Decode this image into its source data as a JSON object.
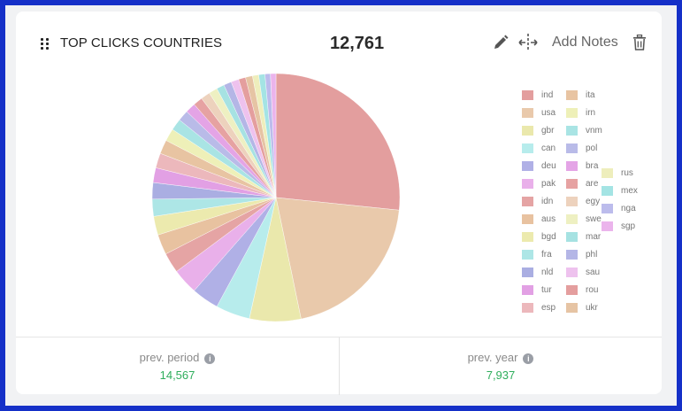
{
  "widget": {
    "title": "TOP CLICKS COUNTRIES",
    "total": "12,761",
    "actions": {
      "edit_icon": "pencil-icon",
      "move_icon": "move-horizontal-icon",
      "add_notes_label": "Add Notes",
      "delete_icon": "trash-icon"
    }
  },
  "footer": {
    "prev_period": {
      "label": "prev. period",
      "value": "14,567",
      "info_icon": "i"
    },
    "prev_year": {
      "label": "prev. year",
      "value": "7,937",
      "info_icon": "i"
    }
  },
  "colors": {
    "positive": "#2fae5c",
    "border": "#1530c8"
  },
  "chart_data": {
    "type": "pie",
    "title": "TOP CLICKS COUNTRIES",
    "total": 12761,
    "legend_position": "right",
    "categories": [
      "ind",
      "usa",
      "gbr",
      "can",
      "deu",
      "pak",
      "idn",
      "aus",
      "bgd",
      "fra",
      "nld",
      "tur",
      "esp",
      "ita",
      "irn",
      "vnm",
      "pol",
      "bra",
      "are",
      "egy",
      "swe",
      "mar",
      "phl",
      "sau",
      "rou",
      "ukr",
      "rus",
      "mex",
      "nga",
      "sgp"
    ],
    "values": [
      26.2,
      19.8,
      6.6,
      4.4,
      3.5,
      3.3,
      2.6,
      2.6,
      2.4,
      2.2,
      2.1,
      1.9,
      1.9,
      1.8,
      1.6,
      1.5,
      1.4,
      1.3,
      1.2,
      1.2,
      1.1,
      1.0,
      1.0,
      1.0,
      0.9,
      0.9,
      0.8,
      0.8,
      0.7,
      0.7
    ],
    "unit": "percent (estimated)",
    "colors": [
      "#e39e9e",
      "#e9c9ab",
      "#eae8ac",
      "#b7ecec",
      "#b0b0e6",
      "#e9b0ea",
      "#e5a4a4",
      "#e8c2a0",
      "#eceaae",
      "#ade6e6",
      "#aaaee2",
      "#e2a0e4",
      "#ecb8bc",
      "#e8c4a2",
      "#eef0b8",
      "#a9e4e4",
      "#b9bbe8",
      "#e4a4e6",
      "#e6a2a2",
      "#edd2bd",
      "#eef0c2",
      "#a6e2e2",
      "#b4b6e6",
      "#eec2ee",
      "#e49e9e",
      "#e6c4a4",
      "#eeeebc",
      "#a4e4e4",
      "#bcbcec",
      "#ebb4ec"
    ]
  }
}
